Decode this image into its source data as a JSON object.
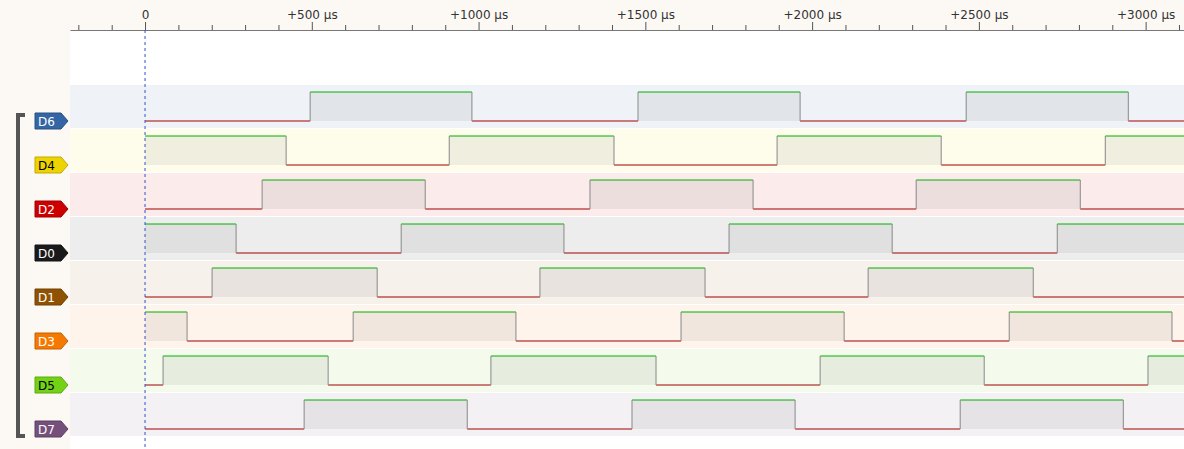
{
  "chart_data": {
    "type": "timing",
    "xlim": [
      -225,
      3115
    ],
    "xticks": [
      0,
      {
        "value": 500,
        "label": "+500 µs"
      },
      {
        "value": 1000,
        "label": "+1000 µs"
      },
      {
        "value": 1500,
        "label": "+1500 µs"
      },
      {
        "value": 2000,
        "label": "+2000 µs"
      },
      {
        "value": 2500,
        "label": "+2500 µs"
      },
      {
        "value": 3000,
        "label": "+3000 µs"
      }
    ],
    "minor_xticks": [
      -200,
      -100,
      100,
      200,
      300,
      400,
      600,
      700,
      800,
      900,
      1100,
      1200,
      1300,
      1400,
      1600,
      1700,
      1800,
      1900,
      2100,
      2200,
      2300,
      2400,
      2600,
      2700,
      2800,
      2900,
      3100
    ],
    "trigger": 0,
    "ylim": [
      0,
      1
    ],
    "tick_labels": "x",
    "series": [
      {
        "name": "D6",
        "color": "#3465a4",
        "x": [
          0,
          495,
          980,
          1478,
          1964,
          2462,
          2948
        ],
        "values": [
          0,
          1,
          0,
          1,
          0,
          1,
          0
        ]
      },
      {
        "name": "D4",
        "color": "#edd400",
        "x": [
          0,
          423,
          912,
          1406,
          1895,
          2387,
          2879
        ],
        "values": [
          1,
          0,
          1,
          0,
          1,
          0,
          1
        ]
      },
      {
        "name": "D2",
        "color": "#cc0000",
        "x": [
          0,
          351,
          840,
          1334,
          1823,
          2312,
          2804
        ],
        "values": [
          0,
          1,
          0,
          1,
          0,
          1,
          0
        ]
      },
      {
        "name": "D0",
        "color": "#1a1a1a",
        "x": [
          0,
          273,
          768,
          1256,
          1751,
          2240,
          2735
        ],
        "values": [
          1,
          0,
          1,
          0,
          1,
          0,
          1
        ]
      },
      {
        "name": "D1",
        "color": "#8f5202",
        "x": [
          0,
          201,
          696,
          1184,
          1679,
          2168,
          2663
        ],
        "values": [
          0,
          1,
          0,
          1,
          0,
          1,
          0
        ]
      },
      {
        "name": "D3",
        "color": "#f57900",
        "x": [
          0,
          126,
          624,
          1112,
          1607,
          2096,
          2591,
          3079
        ],
        "values": [
          1,
          0,
          1,
          0,
          1,
          0,
          1,
          0
        ]
      },
      {
        "name": "D5",
        "color": "#73d216",
        "x": [
          0,
          54,
          549,
          1037,
          1532,
          2024,
          2516,
          3007
        ],
        "values": [
          0,
          1,
          0,
          1,
          0,
          1,
          0,
          1
        ]
      },
      {
        "name": "D7",
        "color": "#75507b",
        "x": [
          0,
          477,
          966,
          1460,
          1949,
          2444,
          2933
        ],
        "values": [
          0,
          1,
          0,
          1,
          0,
          1,
          0
        ]
      }
    ]
  }
}
